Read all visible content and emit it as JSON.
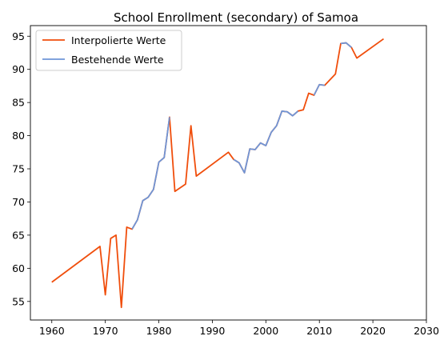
{
  "chart_data": {
    "type": "line",
    "title": "School Enrollment (secondary) of Samoa",
    "xlabel": "",
    "ylabel": "",
    "xlim": [
      1956,
      2030
    ],
    "ylim": [
      52.2,
      96.6
    ],
    "xticks": [
      1960,
      1970,
      1980,
      1990,
      2000,
      2010,
      2020,
      2030
    ],
    "yticks": [
      55,
      60,
      65,
      70,
      75,
      80,
      85,
      90,
      95
    ],
    "grid": false,
    "legend_position": "upper-left",
    "series": [
      {
        "name": "Interpolierte Werte",
        "color": "#f04e0c",
        "x": [
          1960,
          1969,
          1970,
          1971,
          1972,
          1973,
          1974,
          1975,
          1976,
          1977,
          1978,
          1979,
          1980,
          1981,
          1982,
          1983,
          1985,
          1986,
          1987,
          1993,
          1994,
          1995,
          1996,
          1997,
          1998,
          1999,
          2000,
          2001,
          2002,
          2003,
          2004,
          2005,
          2006,
          2007,
          2008,
          2009,
          2010,
          2011,
          2013,
          2014,
          2015,
          2016,
          2017,
          2022
        ],
        "y": [
          57.9,
          63.3,
          56.0,
          64.5,
          65.0,
          54.1,
          66.2,
          65.9,
          67.3,
          70.2,
          70.7,
          71.9,
          76.0,
          76.7,
          82.8,
          71.6,
          72.7,
          81.5,
          73.9,
          77.5,
          76.4,
          75.9,
          74.4,
          78.0,
          77.9,
          78.9,
          78.5,
          80.5,
          81.5,
          83.7,
          83.6,
          83.0,
          83.7,
          83.9,
          86.4,
          86.1,
          87.7,
          87.6,
          89.3,
          93.9,
          94.0,
          93.3,
          91.7,
          94.6
        ]
      },
      {
        "name": "Bestehende Werte",
        "color": "#6f96d8",
        "segments": [
          {
            "x": [
              1975,
              1976,
              1977,
              1978,
              1979,
              1980,
              1981,
              1982
            ],
            "y": [
              65.9,
              67.3,
              70.2,
              70.7,
              71.9,
              76.0,
              76.7,
              82.8
            ]
          },
          {
            "x": [
              1994,
              1995,
              1996,
              1997,
              1998,
              1999,
              2000,
              2001,
              2002,
              2003,
              2004,
              2005,
              2006
            ],
            "y": [
              76.4,
              75.9,
              74.4,
              78.0,
              77.9,
              78.9,
              78.5,
              80.5,
              81.5,
              83.7,
              83.6,
              83.0,
              83.7
            ]
          },
          {
            "x": [
              2009,
              2010,
              2011
            ],
            "y": [
              86.1,
              87.7,
              87.6
            ]
          },
          {
            "x": [
              2014,
              2015,
              2016
            ],
            "y": [
              93.9,
              94.0,
              93.3
            ]
          }
        ]
      }
    ]
  }
}
